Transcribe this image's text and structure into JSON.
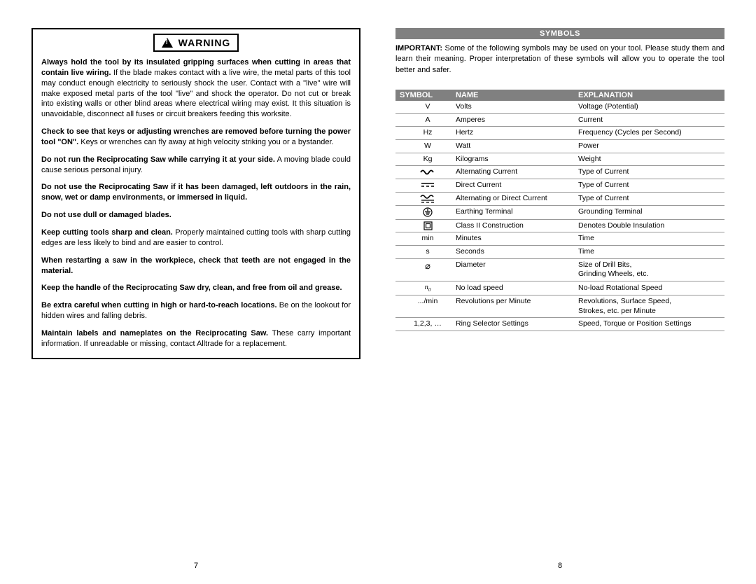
{
  "left": {
    "warning_title": "WARNING",
    "paragraphs": [
      {
        "bold": "Always hold the tool by its insulated gripping surfaces when cutting in areas that contain live wiring.",
        "rest": " If the blade makes contact with a live wire, the metal parts of this tool may conduct enough electricity to seriously shock the user. Contact with a \"live\" wire will make exposed metal parts of the tool \"live\" and shock the operator. Do not cut or break into existing walls or other blind areas where electrical wiring may exist. It this situation is unavoidable, disconnect all fuses or circuit breakers feeding this worksite."
      },
      {
        "bold": "Check to see that keys or adjusting wrenches are removed before turning the power tool \"ON\".",
        "rest": " Keys or wrenches can fly away at high velocity striking you or a bystander."
      },
      {
        "bold": "Do not run the Reciprocating Saw while carrying it at your side.",
        "rest": " A moving blade could cause serious personal injury."
      },
      {
        "bold": "Do not use the Reciprocating Saw if it has been damaged, left outdoors in the rain, snow, wet or damp environments, or immersed in liquid.",
        "rest": ""
      },
      {
        "bold": "Do not use dull or damaged blades.",
        "rest": ""
      },
      {
        "bold": "Keep cutting tools sharp and clean.",
        "rest": " Properly maintained cutting tools with sharp cutting edges are less likely to bind and are easier to control."
      },
      {
        "bold": "When restarting a saw in the workpiece, check that teeth are not engaged in the material.",
        "rest": ""
      },
      {
        "bold": "Keep the handle of the Reciprocating Saw dry, clean, and free from oil and grease.",
        "rest": ""
      },
      {
        "bold": "Be extra careful when cutting in high or hard-to-reach locations.",
        "rest": " Be on the lookout for hidden wires and falling debris."
      },
      {
        "bold": "Maintain labels and nameplates on the Reciprocating Saw.",
        "rest": " These carry important information. If unreadable or missing, contact Alltrade for a replacement."
      }
    ],
    "page_num": "7"
  },
  "right": {
    "section_title": "SYMBOLS",
    "intro_bold": "IMPORTANT:",
    "intro_rest": " Some of the following symbols may be used on your tool. Please study them and learn their meaning. Proper interpretation of these symbols will allow you to operate the tool better and safer.",
    "headers": {
      "symbol": "SYMBOL",
      "name": "NAME",
      "explanation": "EXPLANATION"
    },
    "rows": [
      {
        "symbol": "V",
        "name": "Volts",
        "explanation": "Voltage (Potential)"
      },
      {
        "symbol": "A",
        "name": "Amperes",
        "explanation": "Current"
      },
      {
        "symbol": "Hz",
        "name": "Hertz",
        "explanation": "Frequency (Cycles per Second)"
      },
      {
        "symbol": "W",
        "name": "Watt",
        "explanation": "Power"
      },
      {
        "symbol": "Kg",
        "name": "Kilograms",
        "explanation": "Weight"
      },
      {
        "symbol": "__AC__",
        "name": "Alternating Current",
        "explanation": "Type of Current"
      },
      {
        "symbol": "__DC__",
        "name": "Direct Current",
        "explanation": "Type of Current"
      },
      {
        "symbol": "__ACDC__",
        "name": "Alternating or Direct Current",
        "explanation": "Type of Current"
      },
      {
        "symbol": "__EARTH__",
        "name": "Earthing Terminal",
        "explanation": "Grounding Terminal"
      },
      {
        "symbol": "__CLASS2__",
        "name": "Class II Construction",
        "explanation": "Denotes Double Insulation"
      },
      {
        "symbol": "min",
        "name": "Minutes",
        "explanation": "Time"
      },
      {
        "symbol": "s",
        "name": "Seconds",
        "explanation": "Time"
      },
      {
        "symbol": "__DIAM__",
        "name": "Diameter",
        "explanation": "Size of Drill Bits,\nGrinding Wheels, etc."
      },
      {
        "symbol": "__N0__",
        "name": "No load speed",
        "explanation": "No-load Rotational Speed"
      },
      {
        "symbol": ".../min",
        "name": "Revolutions per Minute",
        "explanation": "Revolutions, Surface Speed,\nStrokes, etc. per Minute"
      },
      {
        "symbol": "1,2,3, …",
        "name": "Ring Selector Settings",
        "explanation": "Speed, Torque or Position Settings"
      }
    ],
    "page_num": "8"
  }
}
